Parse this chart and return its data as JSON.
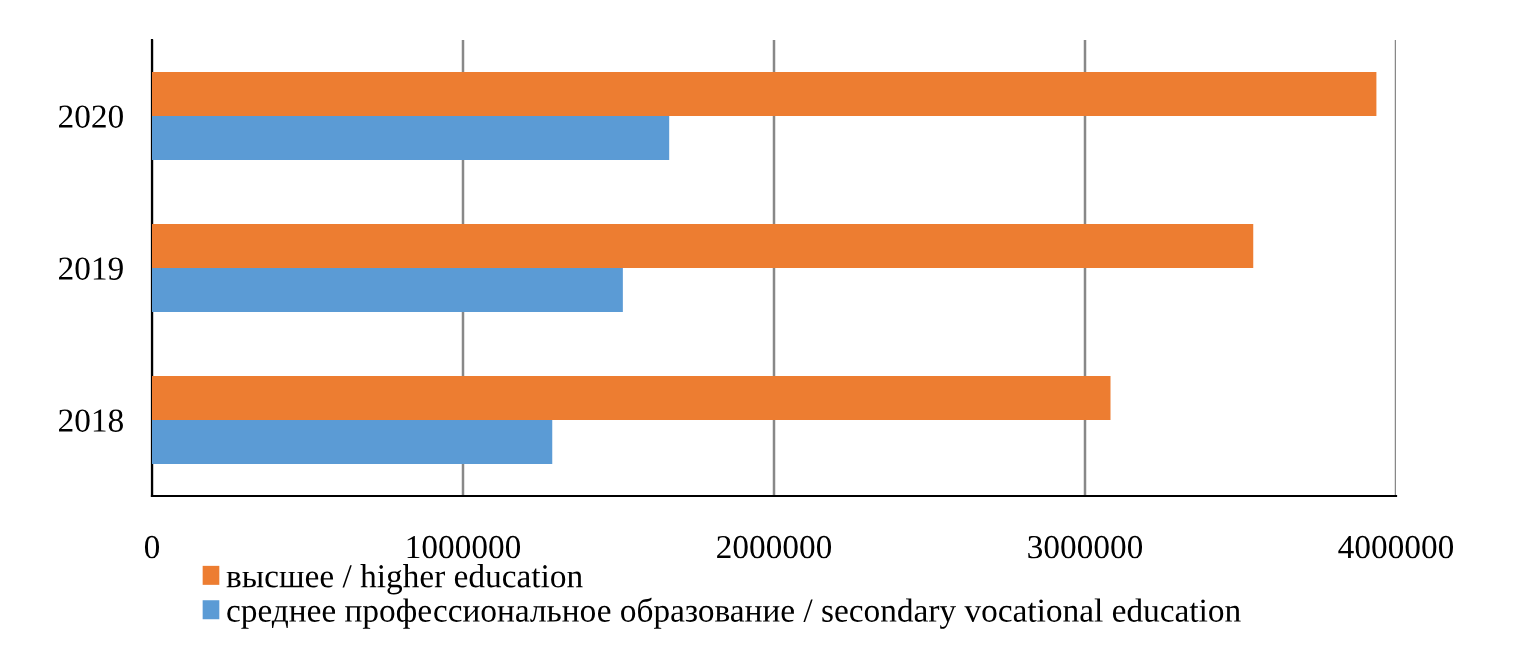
{
  "chart_data": {
    "type": "bar",
    "orientation": "horizontal",
    "categories": [
      "2020",
      "2019",
      "2018"
    ],
    "series": [
      {
        "name": "высшее / higher education",
        "color": "#ed7d31",
        "values": [
          3937000,
          3541000,
          3082000
        ]
      },
      {
        "name": "среднее профессиональное образование / secondary vocational education",
        "color": "#5b9bd5",
        "values": [
          1663000,
          1514000,
          1287000
        ]
      }
    ],
    "xlim": [
      0,
      4000000
    ],
    "xticks": [
      0,
      1000000,
      2000000,
      3000000,
      4000000
    ],
    "grid": "x",
    "legend": "bottom"
  }
}
